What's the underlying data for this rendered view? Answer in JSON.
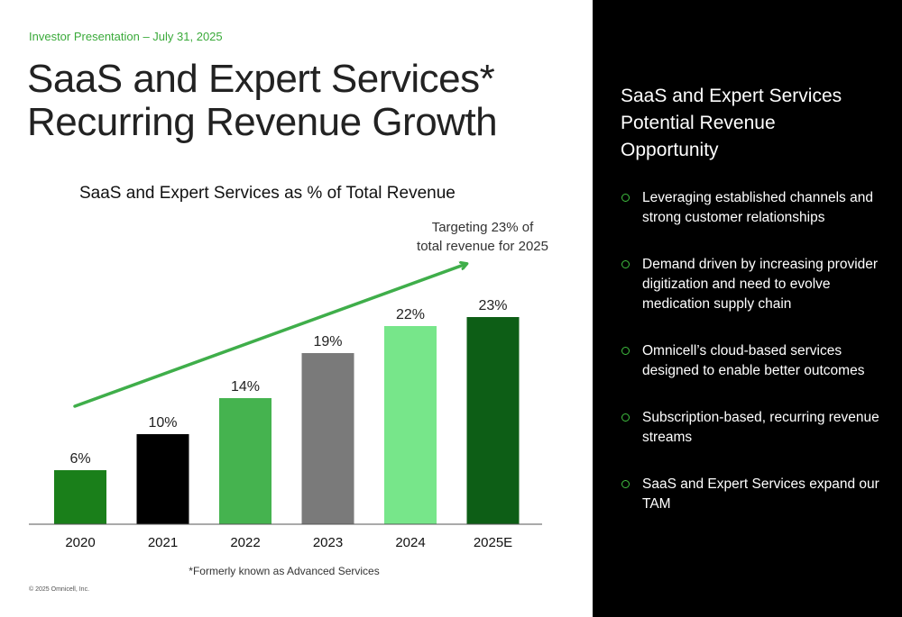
{
  "header": {
    "eyebrow": "Investor Presentation – July 31, 2025",
    "title_line1": "SaaS and Expert Services*",
    "title_line2": "Recurring Revenue Growth"
  },
  "chart_data": {
    "type": "bar",
    "title": "SaaS and Expert Services as % of Total Revenue",
    "categories": [
      "2020",
      "2021",
      "2022",
      "2023",
      "2024",
      "2025E"
    ],
    "values": [
      6,
      10,
      14,
      19,
      22,
      23
    ],
    "value_labels": [
      "6%",
      "10%",
      "14%",
      "19%",
      "22%",
      "23%"
    ],
    "bar_colors": [
      "#1a7f1a",
      "#000000",
      "#45b34f",
      "#7a7a7a",
      "#77e68a",
      "#0d5e16"
    ],
    "ylim": [
      0,
      30
    ],
    "xlabel": "",
    "ylabel": "",
    "grid": false,
    "annotation": "Targeting 23% of total revenue for 2025",
    "trend_arrow_color": "#3fae4a"
  },
  "annotation": {
    "line1": "Targeting 23% of",
    "line2": "total revenue for 2025"
  },
  "footnote": "*Formerly known as Advanced Services",
  "copyright": "© 2025 Omnicell, Inc.",
  "panel": {
    "title_line1": "SaaS and Expert Services",
    "title_line2": "Potential Revenue",
    "title_line3": "Opportunity",
    "bullets": [
      "Leveraging established channels and strong customer relationships",
      "Demand driven by increasing provider digitization and need to evolve medication supply chain",
      "Omnicell’s cloud-based services designed to enable better outcomes",
      "Subscription-based, recurring revenue streams",
      "SaaS and Expert Services expand our TAM"
    ]
  },
  "colors": {
    "accent_green": "#3aaa3a",
    "panel_background": "#000000"
  }
}
